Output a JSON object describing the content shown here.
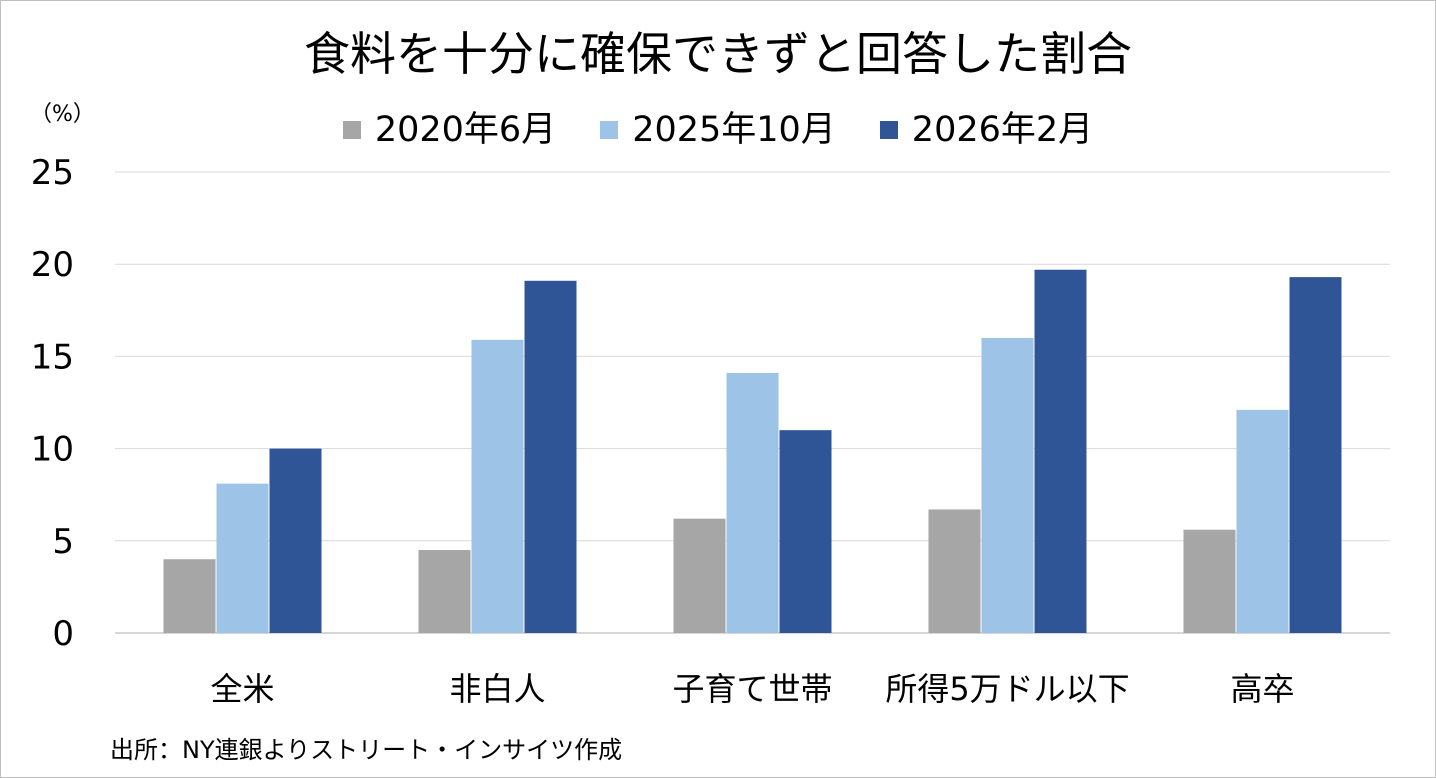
{
  "chart_data": {
    "type": "bar",
    "title": "食料を十分に確保できずと回答した割合",
    "ylabel": "（%）",
    "categories": [
      "全米",
      "非白人",
      "子育て世帯",
      "所得5万ドル以下",
      "高卒"
    ],
    "series": [
      {
        "name": "2020年6月",
        "color": "#a6a6a6",
        "values": [
          4.0,
          4.5,
          6.2,
          6.7,
          5.6
        ]
      },
      {
        "name": "2025年10月",
        "color": "#9dc3e6",
        "values": [
          8.1,
          15.9,
          14.1,
          16.0,
          12.1
        ]
      },
      {
        "name": "2026年2月",
        "color": "#2f5597",
        "values": [
          10.0,
          19.1,
          11.0,
          19.7,
          19.3
        ]
      }
    ],
    "ylim": [
      0,
      25
    ],
    "yticks": [
      0,
      5,
      10,
      15,
      20,
      25
    ],
    "grid": true,
    "legend_position": "top"
  },
  "source": "出所：NY連銀よりストリート・インサイツ作成"
}
